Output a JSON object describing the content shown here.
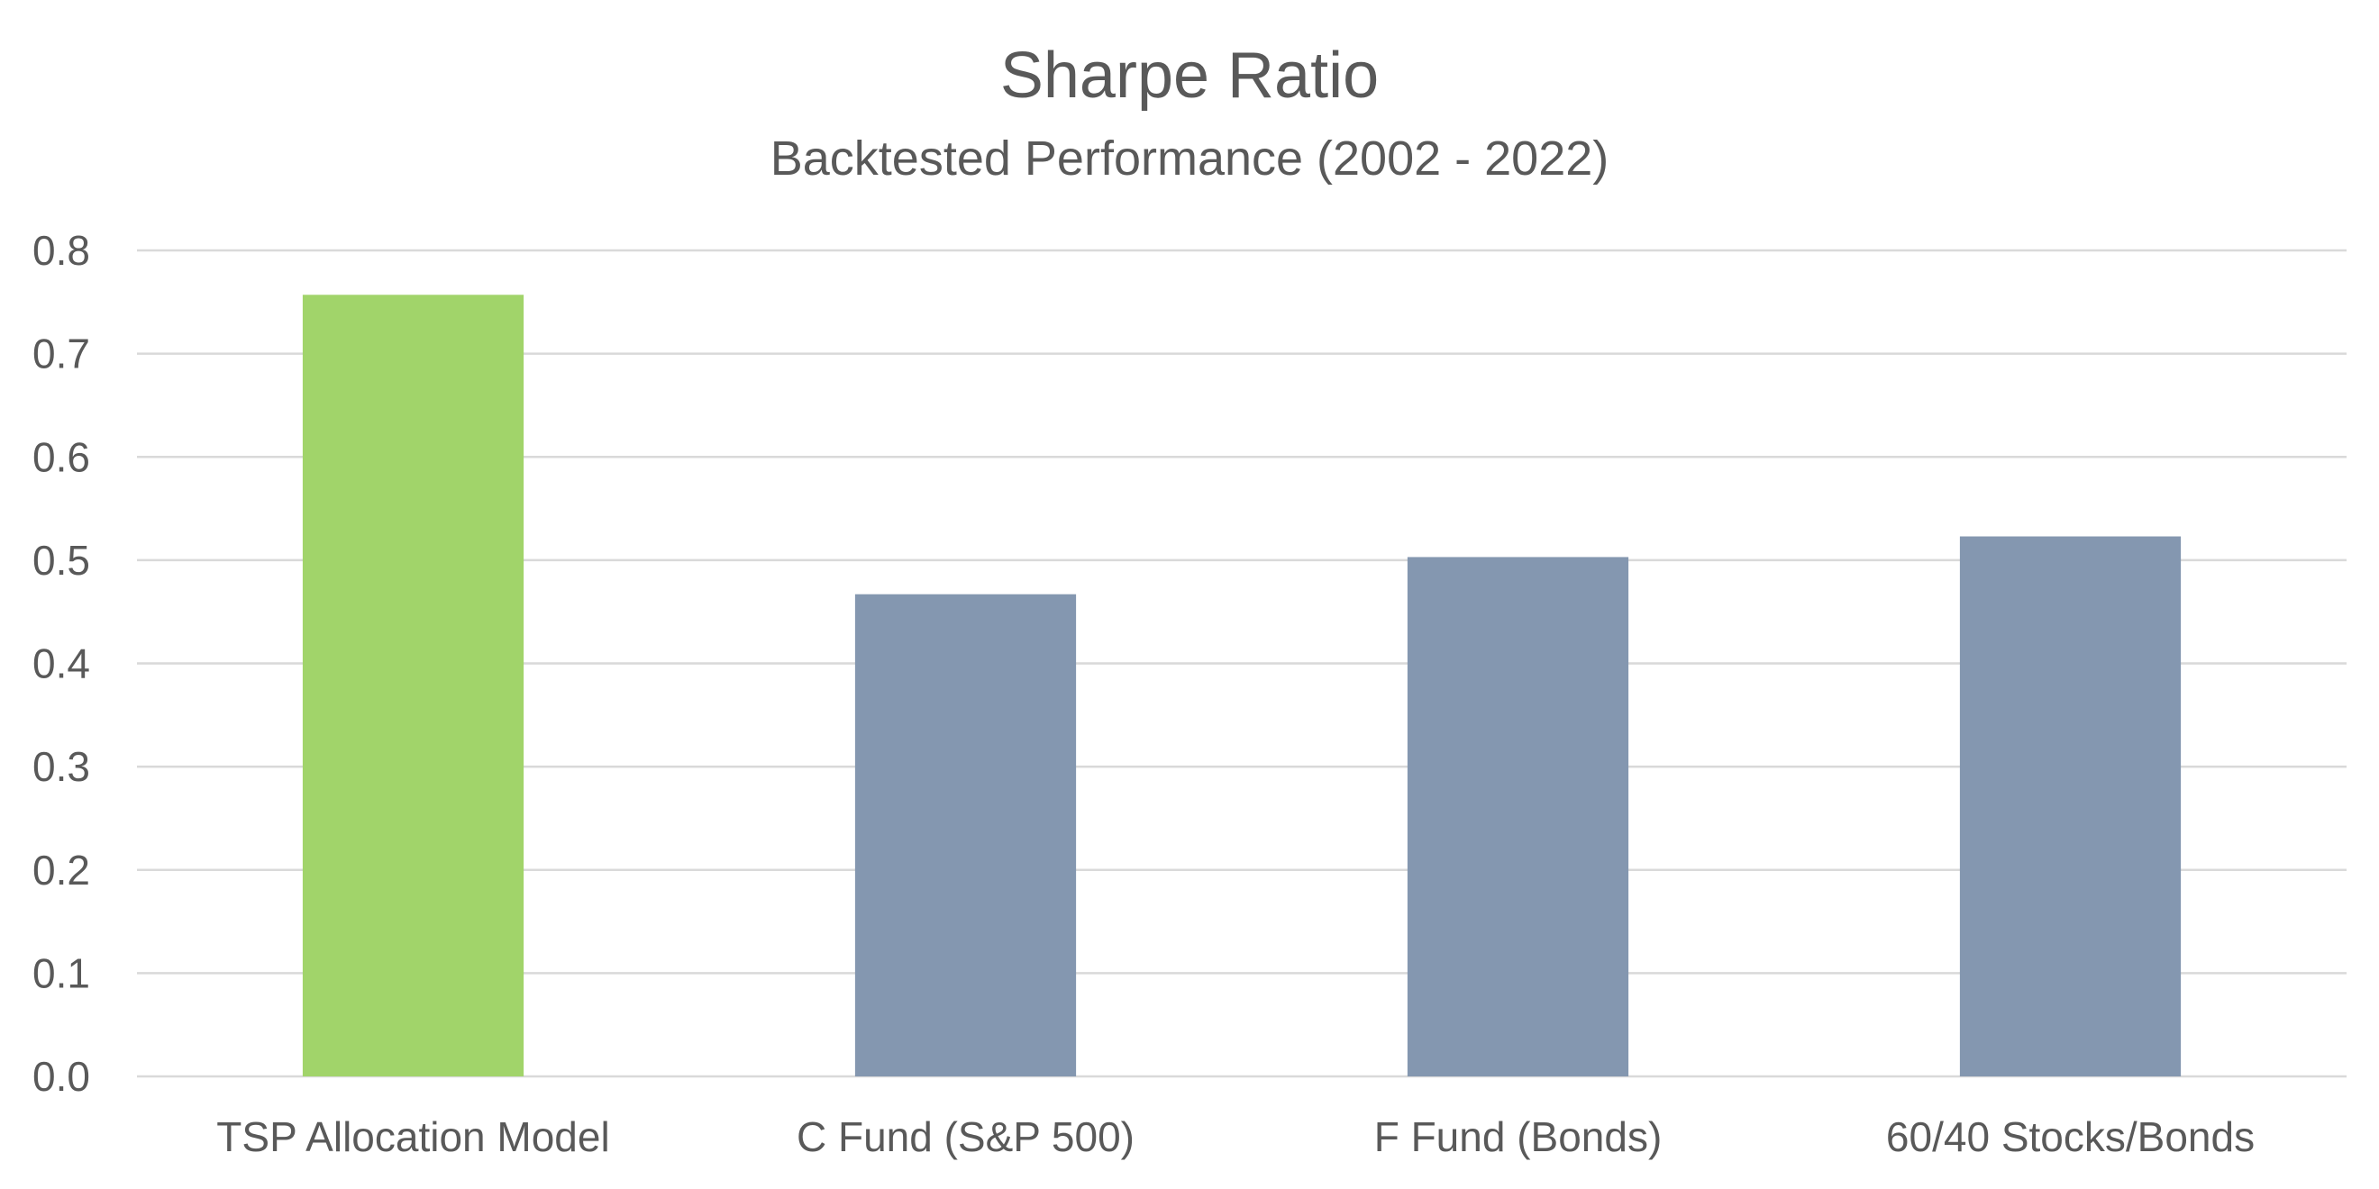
{
  "chart_data": {
    "type": "bar",
    "title": "Sharpe Ratio",
    "subtitle": "Backtested Performance (2002 - 2022)",
    "xlabel": "",
    "ylabel": "",
    "categories": [
      "TSP Allocation Model",
      "C Fund (S&P 500)",
      "F Fund (Bonds)",
      "60/40 Stocks/Bonds"
    ],
    "values": [
      0.757,
      0.467,
      0.503,
      0.523
    ],
    "ylim": [
      0,
      0.8
    ],
    "yticks": [
      "0.0",
      "0.1",
      "0.2",
      "0.3",
      "0.4",
      "0.5",
      "0.6",
      "0.7",
      "0.8"
    ],
    "grid": true,
    "legend": "none",
    "colors": {
      "highlight": "#a1d46a",
      "default": "#8497b0",
      "grid": "#d9d9d9",
      "text": "#595959"
    },
    "highlight_index": 0
  }
}
